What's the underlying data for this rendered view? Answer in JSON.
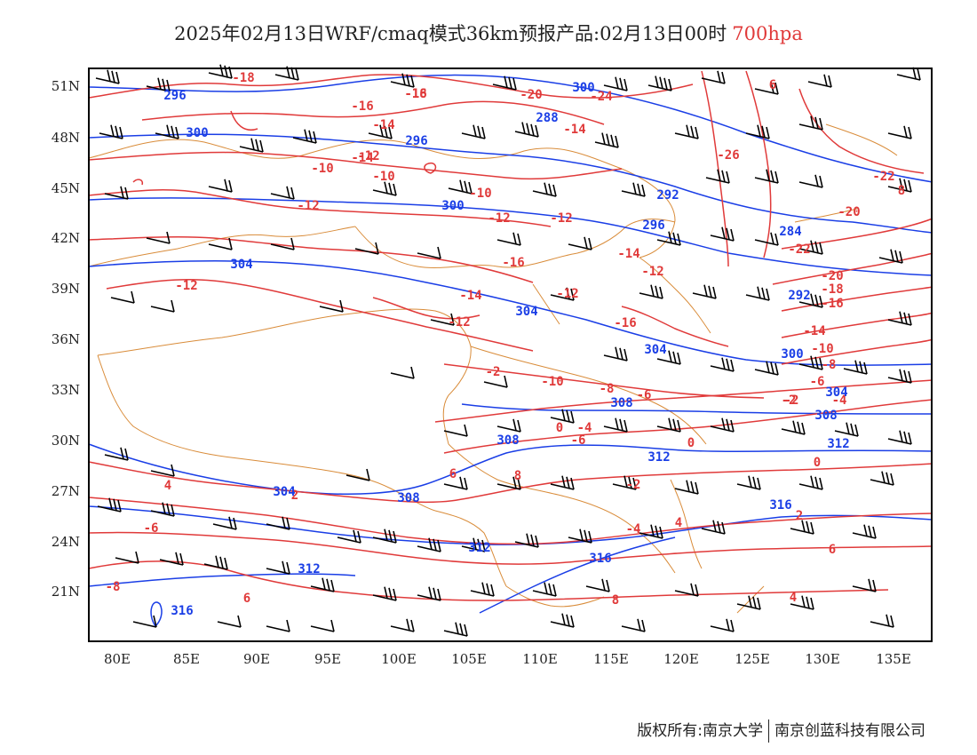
{
  "title": {
    "main": "2025年02月13日WRF/cmaq模式36km预报产品:02月13日00时",
    "level": "700hpa"
  },
  "axes": {
    "lat_labels": [
      "51N",
      "48N",
      "45N",
      "42N",
      "39N",
      "36N",
      "33N",
      "30N",
      "27N",
      "24N",
      "21N"
    ],
    "lon_labels": [
      "80E",
      "85E",
      "90E",
      "95E",
      "100E",
      "105E",
      "110E",
      "115E",
      "120E",
      "125E",
      "130E",
      "135E"
    ]
  },
  "colors": {
    "temperature": "#e03a3a",
    "height": "#1a3ee6",
    "boundary": "#d98c3a",
    "barbs": "#000000",
    "frame": "#000000"
  },
  "temperature_labels": [
    "-18",
    "-16",
    "-20",
    "-16",
    "-18",
    "-14",
    "-12",
    "-14",
    "-12",
    "-10",
    "-10",
    "-12",
    "-10",
    "-12",
    "-14",
    "-16",
    "-14",
    "-12",
    "-16",
    "-12",
    "-14",
    "-12",
    "-10",
    "-8",
    "-6",
    "-4",
    "-2",
    "0",
    "2",
    "4",
    "6",
    "8",
    "-20",
    "-22",
    "-24",
    "-26",
    "-22",
    "-20",
    "-18",
    "-16",
    "-14",
    "-10",
    "-8",
    "-6",
    "-4",
    "-2",
    "0",
    "-2",
    "2",
    "4",
    "6",
    "8",
    "4",
    "6",
    "8",
    "-6",
    "0",
    "-2",
    "-4",
    "6",
    "-8",
    "-12",
    "-6"
  ],
  "height_labels": [
    "296",
    "300",
    "296",
    "288",
    "292",
    "300",
    "304",
    "296",
    "284",
    "292",
    "304",
    "304",
    "300",
    "308",
    "304",
    "308",
    "308",
    "312",
    "316",
    "312",
    "312",
    "316",
    "316",
    "300",
    "304",
    "308",
    "312"
  ],
  "footer": {
    "left": "版权所有:南京大学",
    "right": "南京创蓝科技有限公司"
  }
}
